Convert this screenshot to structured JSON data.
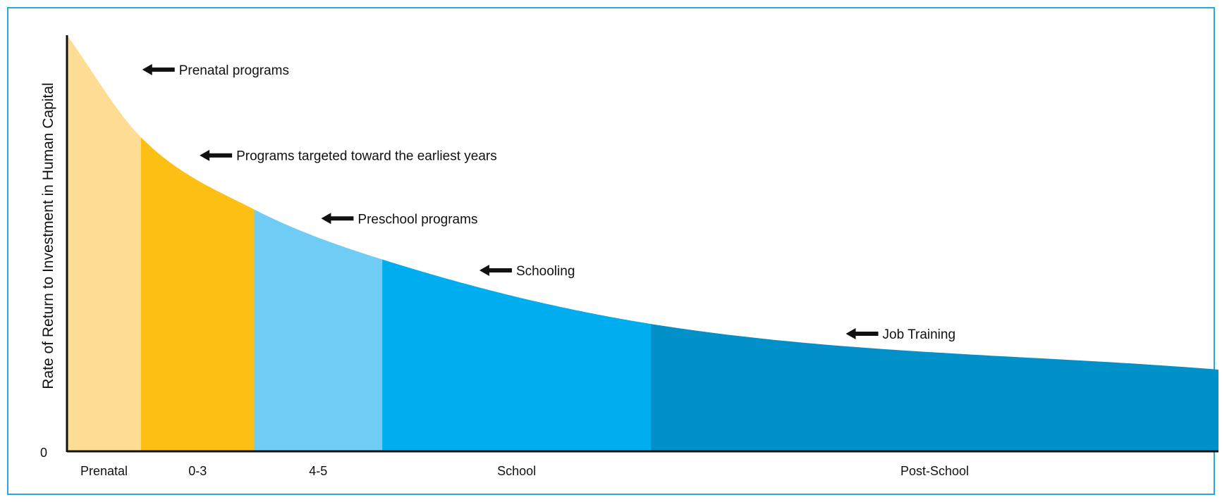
{
  "chart_data": {
    "type": "area",
    "title": "",
    "xlabel": "",
    "ylabel": "Rate of Return to Investment in Human Capital",
    "y_origin_label": "0",
    "categories": [
      "Prenatal",
      "0-3",
      "4-5",
      "School",
      "Post-School"
    ],
    "segment_widths": [
      1.0,
      1.53,
      1.73,
      3.63,
      7.67
    ],
    "curve": {
      "description_points_relative": [
        {
          "t": 0.0,
          "v": 1.0
        },
        {
          "t": 0.064,
          "v": 0.755
        },
        {
          "t": 0.163,
          "v": 0.58
        },
        {
          "t": 0.274,
          "v": 0.46
        },
        {
          "t": 0.507,
          "v": 0.305
        },
        {
          "t": 1.0,
          "v": 0.195
        }
      ]
    },
    "annotations": [
      {
        "text": "Prenatal programs",
        "segment": 0
      },
      {
        "text": "Programs targeted toward the earliest years",
        "segment": 1
      },
      {
        "text": "Preschool programs",
        "segment": 2
      },
      {
        "text": "Schooling",
        "segment": 3
      },
      {
        "text": "Job Training",
        "segment": 4
      }
    ],
    "colors": {
      "frame": "#29a8e0",
      "segments": [
        "#fddc93",
        "#fdbf14",
        "#6fcdf5",
        "#00aeef",
        "#0290c8"
      ],
      "axis": "#111111",
      "arrow": "#111111"
    },
    "grid": false,
    "legend": "none"
  }
}
